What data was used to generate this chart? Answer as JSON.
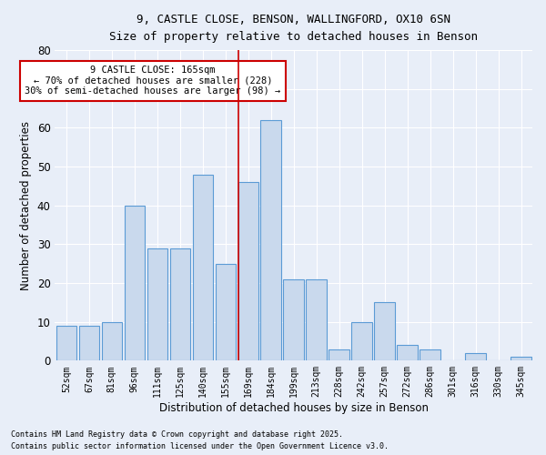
{
  "title1": "9, CASTLE CLOSE, BENSON, WALLINGFORD, OX10 6SN",
  "title2": "Size of property relative to detached houses in Benson",
  "xlabel": "Distribution of detached houses by size in Benson",
  "ylabel": "Number of detached properties",
  "categories": [
    "52sqm",
    "67sqm",
    "81sqm",
    "96sqm",
    "111sqm",
    "125sqm",
    "140sqm",
    "155sqm",
    "169sqm",
    "184sqm",
    "199sqm",
    "213sqm",
    "228sqm",
    "242sqm",
    "257sqm",
    "272sqm",
    "286sqm",
    "301sqm",
    "316sqm",
    "330sqm",
    "345sqm"
  ],
  "values": [
    9,
    9,
    10,
    40,
    29,
    29,
    48,
    25,
    46,
    62,
    21,
    21,
    3,
    10,
    15,
    4,
    3,
    0,
    2,
    0,
    1
  ],
  "bar_color": "#c9d9ed",
  "bar_edge_color": "#5b9bd5",
  "highlight_index": 8,
  "highlight_line_color": "#cc0000",
  "annotation_text": "9 CASTLE CLOSE: 165sqm\n← 70% of detached houses are smaller (228)\n30% of semi-detached houses are larger (98) →",
  "annotation_box_color": "#ffffff",
  "annotation_box_edge": "#cc0000",
  "ylim": [
    0,
    80
  ],
  "yticks": [
    0,
    10,
    20,
    30,
    40,
    50,
    60,
    70,
    80
  ],
  "background_color": "#e8eef8",
  "grid_color": "#ffffff",
  "footer_line1": "Contains HM Land Registry data © Crown copyright and database right 2025.",
  "footer_line2": "Contains public sector information licensed under the Open Government Licence v3.0."
}
